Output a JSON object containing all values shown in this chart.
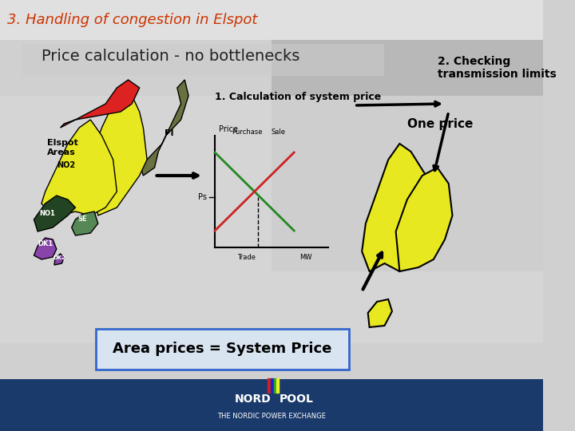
{
  "title_top": "3. Handling of congestion in Elspot",
  "subtitle": "Price calculation - no bottlenecks",
  "title_color": "#cc3300",
  "subtitle_color": "#333333",
  "bg_color": "#d0d0d0",
  "content_bg": "#e8e8e8",
  "footer_color": "#1a3a6b",
  "elspot_areas_label": "Elspot Areas",
  "step1_label": "1. Calculation of system price",
  "step2_label": "2. Checking\ntransmission limits",
  "one_price_label": "One price",
  "area_price_label": "Area prices = System Price",
  "chart_price_label": "Price",
  "chart_purchase_label": "Purchase",
  "chart_sale_label": "Sale",
  "chart_ps_label": "Ps",
  "chart_trade_label": "Trade",
  "chart_mw_label": "MW",
  "purchase_color": "#228822",
  "sale_color": "#cc2222"
}
